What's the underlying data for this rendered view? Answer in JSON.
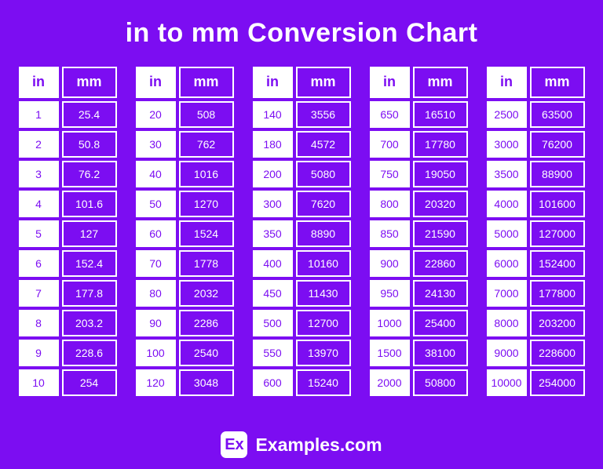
{
  "page": {
    "title": "in to mm Conversion Chart",
    "background_color": "#7C0DF2",
    "accent_color": "#7C0DF2",
    "text_on_purple": "#FFFFFF"
  },
  "chart_data": {
    "type": "table",
    "title": "in to mm Conversion Chart",
    "columns": [
      "in",
      "mm"
    ],
    "tables": [
      {
        "rows": [
          [
            1,
            25.4
          ],
          [
            2,
            50.8
          ],
          [
            3,
            76.2
          ],
          [
            4,
            101.6
          ],
          [
            5,
            127
          ],
          [
            6,
            152.4
          ],
          [
            7,
            177.8
          ],
          [
            8,
            203.2
          ],
          [
            9,
            228.6
          ],
          [
            10,
            254
          ]
        ]
      },
      {
        "rows": [
          [
            20,
            508
          ],
          [
            30,
            762
          ],
          [
            40,
            1016
          ],
          [
            50,
            1270
          ],
          [
            60,
            1524
          ],
          [
            70,
            1778
          ],
          [
            80,
            2032
          ],
          [
            90,
            2286
          ],
          [
            100,
            2540
          ],
          [
            120,
            3048
          ]
        ]
      },
      {
        "rows": [
          [
            140,
            3556
          ],
          [
            180,
            4572
          ],
          [
            200,
            5080
          ],
          [
            300,
            7620
          ],
          [
            350,
            8890
          ],
          [
            400,
            10160
          ],
          [
            450,
            11430
          ],
          [
            500,
            12700
          ],
          [
            550,
            13970
          ],
          [
            600,
            15240
          ]
        ]
      },
      {
        "rows": [
          [
            650,
            16510
          ],
          [
            700,
            17780
          ],
          [
            750,
            19050
          ],
          [
            800,
            20320
          ],
          [
            850,
            21590
          ],
          [
            900,
            22860
          ],
          [
            950,
            24130
          ],
          [
            1000,
            25400
          ],
          [
            1500,
            38100
          ],
          [
            2000,
            50800
          ]
        ]
      },
      {
        "rows": [
          [
            2500,
            63500
          ],
          [
            3000,
            76200
          ],
          [
            3500,
            88900
          ],
          [
            4000,
            101600
          ],
          [
            5000,
            127000
          ],
          [
            6000,
            152400
          ],
          [
            7000,
            177800
          ],
          [
            8000,
            203200
          ],
          [
            9000,
            228600
          ],
          [
            10000,
            254000
          ]
        ]
      }
    ]
  },
  "footer": {
    "logo_text": "Ex",
    "brand": "Examples.com"
  }
}
